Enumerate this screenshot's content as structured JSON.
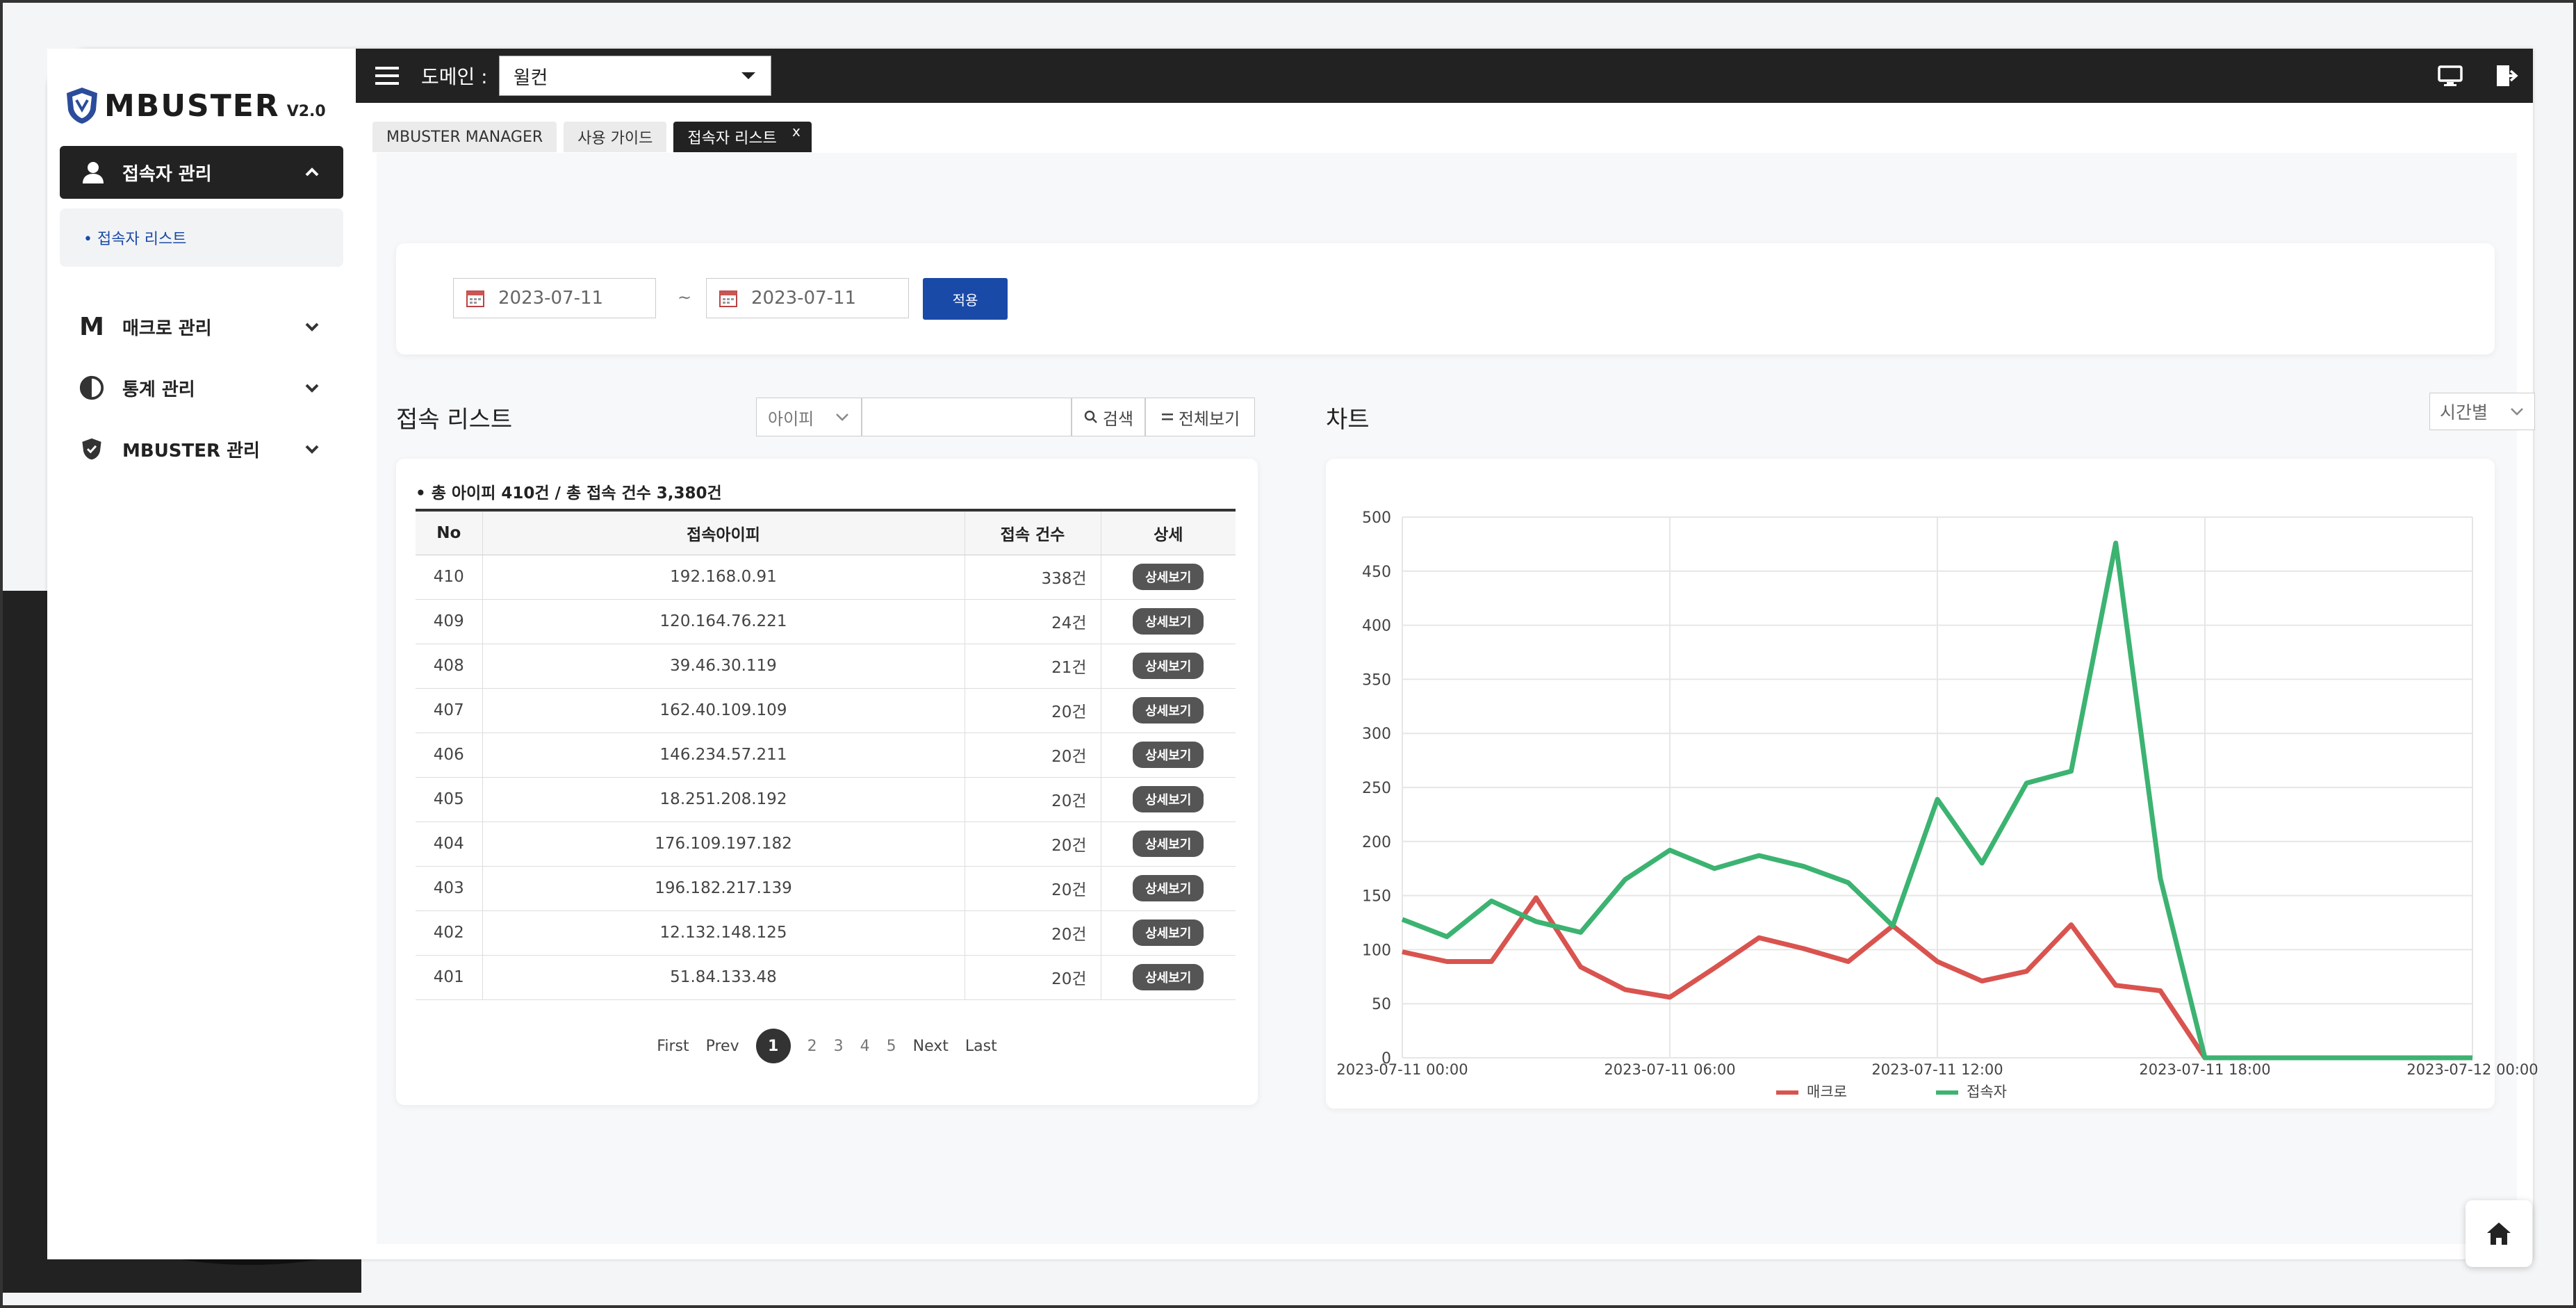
{
  "app": {
    "logo_text": "MBUSTER",
    "version": "V2.0"
  },
  "sidebar": {
    "active": "접속자 관리",
    "sub_active": "접속자 리스트",
    "items": [
      "매크로 관리",
      "통계 관리",
      "MBUSTER 관리"
    ]
  },
  "topbar": {
    "domain_label": "도메인 :",
    "domain_value": "윌컨"
  },
  "tabs": [
    {
      "label": "MBUSTER MANAGER"
    },
    {
      "label": "사용 가이드"
    },
    {
      "label": "접속자 리스트",
      "close": "x"
    }
  ],
  "filter": {
    "start_date": "2023-07-11",
    "end_date": "2023-07-11",
    "separator": "~",
    "apply_label": "적용"
  },
  "list": {
    "title": "접속 리스트",
    "ip_select": "아이피",
    "search_label": "검색",
    "all_label": "전체보기",
    "summary": "총 아이피 410건 / 총 접속 건수 3,380건",
    "headers": [
      "No",
      "접속아이피",
      "접속 건수",
      "상세"
    ],
    "detail_label": "상세보기",
    "rows": [
      {
        "no": "410",
        "ip": "192.168.0.91",
        "count": "338건"
      },
      {
        "no": "409",
        "ip": "120.164.76.221",
        "count": "24건"
      },
      {
        "no": "408",
        "ip": "39.46.30.119",
        "count": "21건"
      },
      {
        "no": "407",
        "ip": "162.40.109.109",
        "count": "20건"
      },
      {
        "no": "406",
        "ip": "146.234.57.211",
        "count": "20건"
      },
      {
        "no": "405",
        "ip": "18.251.208.192",
        "count": "20건"
      },
      {
        "no": "404",
        "ip": "176.109.197.182",
        "count": "20건"
      },
      {
        "no": "403",
        "ip": "196.182.217.139",
        "count": "20건"
      },
      {
        "no": "402",
        "ip": "12.132.148.125",
        "count": "20건"
      },
      {
        "no": "401",
        "ip": "51.84.133.48",
        "count": "20건"
      }
    ],
    "pager": {
      "first": "First",
      "prev": "Prev",
      "pages": [
        "1",
        "2",
        "3",
        "4",
        "5"
      ],
      "current": "1",
      "next": "Next",
      "last": "Last"
    }
  },
  "chart": {
    "title": "차트",
    "time_select": "시간별",
    "colors": {
      "macro": "#d9534f",
      "visitor": "#3cb371"
    }
  },
  "chart_data": {
    "type": "line",
    "x_labels": [
      "2023-07-11 00:00",
      "2023-07-11 06:00",
      "2023-07-11 12:00",
      "2023-07-11 18:00",
      "2023-07-12 00:00"
    ],
    "x_hours": [
      0,
      1,
      2,
      3,
      4,
      5,
      6,
      7,
      8,
      9,
      10,
      11,
      12,
      13,
      14,
      15,
      16,
      17,
      18,
      19,
      20,
      21,
      22,
      23,
      24
    ],
    "ylim": [
      0,
      500
    ],
    "y_ticks": [
      0,
      50,
      100,
      150,
      200,
      250,
      300,
      350,
      400,
      450,
      500
    ],
    "series": [
      {
        "name": "매크로",
        "color": "#d9534f",
        "values": [
          98,
          89,
          89,
          148,
          84,
          63,
          56,
          83,
          111,
          101,
          89,
          122,
          89,
          71,
          80,
          123,
          67,
          62,
          0,
          0,
          0,
          0,
          0,
          0,
          0
        ]
      },
      {
        "name": "접속자",
        "color": "#3cb371",
        "values": [
          128,
          112,
          145,
          126,
          116,
          165,
          192,
          175,
          187,
          177,
          162,
          122,
          239,
          180,
          254,
          265,
          476,
          166,
          0,
          0,
          0,
          0,
          0,
          0,
          0
        ]
      }
    ],
    "grid": true,
    "legend": "bottom"
  }
}
